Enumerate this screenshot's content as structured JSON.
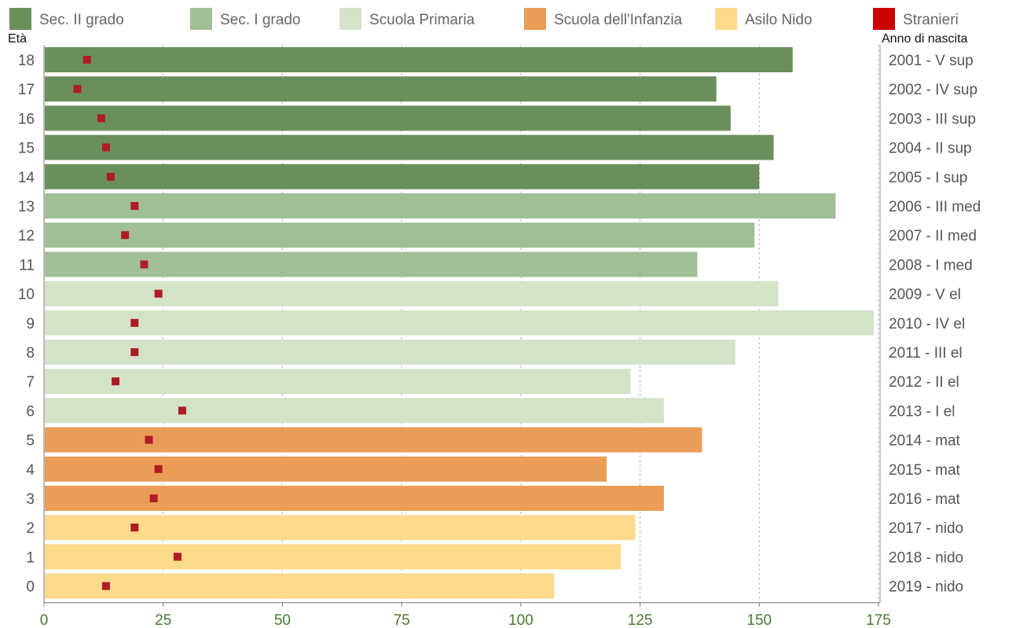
{
  "chart_data": {
    "type": "bar",
    "orientation": "horizontal",
    "left_axis_title": "Età",
    "right_axis_title": "Anno di nascita",
    "xlim": [
      0,
      175
    ],
    "x_ticks": [
      "0",
      "25",
      "50",
      "75",
      "100",
      "125",
      "150",
      "175"
    ],
    "grid": "vertical dashed",
    "legend": [
      {
        "name": "Sec. II grado",
        "color": "#6a8f5c"
      },
      {
        "name": "Sec. I grado",
        "color": "#a1bf96"
      },
      {
        "name": "Scuola Primaria",
        "color": "#d4e2c8"
      },
      {
        "name": "Scuola dell'Infanzia",
        "color": "#e99d56"
      },
      {
        "name": "Asilo Nido",
        "color": "#fdd98c"
      },
      {
        "name": "Stranieri",
        "color": "#cc0000"
      }
    ],
    "stranieri_marker_color": "#b01c24",
    "rows": [
      {
        "age": "18",
        "label": "2001 - V sup",
        "total": 157,
        "stranieri": 9,
        "group": 0
      },
      {
        "age": "17",
        "label": "2002 - IV sup",
        "total": 141,
        "stranieri": 7,
        "group": 0
      },
      {
        "age": "16",
        "label": "2003 - III sup",
        "total": 144,
        "stranieri": 12,
        "group": 0
      },
      {
        "age": "15",
        "label": "2004 - II sup",
        "total": 153,
        "stranieri": 13,
        "group": 0
      },
      {
        "age": "14",
        "label": "2005 - I sup",
        "total": 150,
        "stranieri": 14,
        "group": 0
      },
      {
        "age": "13",
        "label": "2006 - III med",
        "total": 166,
        "stranieri": 19,
        "group": 1
      },
      {
        "age": "12",
        "label": "2007 - II med",
        "total": 149,
        "stranieri": 17,
        "group": 1
      },
      {
        "age": "11",
        "label": "2008 - I med",
        "total": 137,
        "stranieri": 21,
        "group": 1
      },
      {
        "age": "10",
        "label": "2009 - V el",
        "total": 154,
        "stranieri": 24,
        "group": 2
      },
      {
        "age": "9",
        "label": "2010 - IV el",
        "total": 174,
        "stranieri": 19,
        "group": 2
      },
      {
        "age": "8",
        "label": "2011 - III el",
        "total": 145,
        "stranieri": 19,
        "group": 2
      },
      {
        "age": "7",
        "label": "2012 - II el",
        "total": 123,
        "stranieri": 15,
        "group": 2
      },
      {
        "age": "6",
        "label": "2013 - I el",
        "total": 130,
        "stranieri": 29,
        "group": 2
      },
      {
        "age": "5",
        "label": "2014 - mat",
        "total": 138,
        "stranieri": 22,
        "group": 3
      },
      {
        "age": "4",
        "label": "2015 - mat",
        "total": 118,
        "stranieri": 24,
        "group": 3
      },
      {
        "age": "3",
        "label": "2016 - mat",
        "total": 130,
        "stranieri": 23,
        "group": 3
      },
      {
        "age": "2",
        "label": "2017 - nido",
        "total": 124,
        "stranieri": 19,
        "group": 4
      },
      {
        "age": "1",
        "label": "2018 - nido",
        "total": 121,
        "stranieri": 28,
        "group": 4
      },
      {
        "age": "0",
        "label": "2019 - nido",
        "total": 107,
        "stranieri": 13,
        "group": 4
      }
    ]
  }
}
